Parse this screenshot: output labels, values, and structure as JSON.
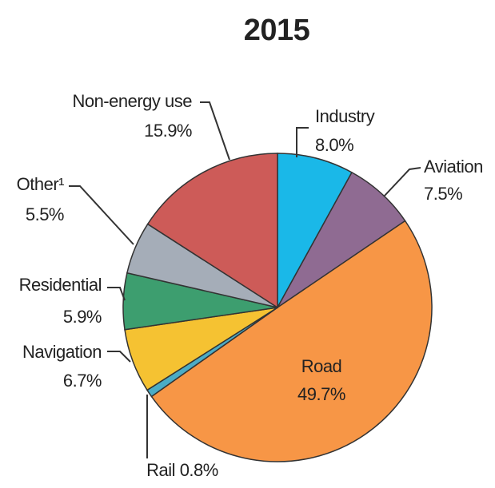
{
  "chart_data": {
    "type": "pie",
    "title": "2015",
    "categories": [
      "Industry",
      "Aviation",
      "Road",
      "Rail",
      "Navigation",
      "Residential",
      "Other¹",
      "Non-energy use"
    ],
    "values": [
      8.0,
      7.5,
      49.7,
      0.8,
      6.7,
      5.9,
      5.5,
      15.9
    ],
    "value_labels": [
      "8.0%",
      "7.5%",
      "49.7%",
      "0.8%",
      "6.7%",
      "5.9%",
      "5.5%",
      "15.9%"
    ],
    "colors": [
      "#1ab8e8",
      "#8f6b92",
      "#f79646",
      "#4bacc6",
      "#f5c232",
      "#3d9e6f",
      "#a5adb8",
      "#cd5b58"
    ]
  }
}
